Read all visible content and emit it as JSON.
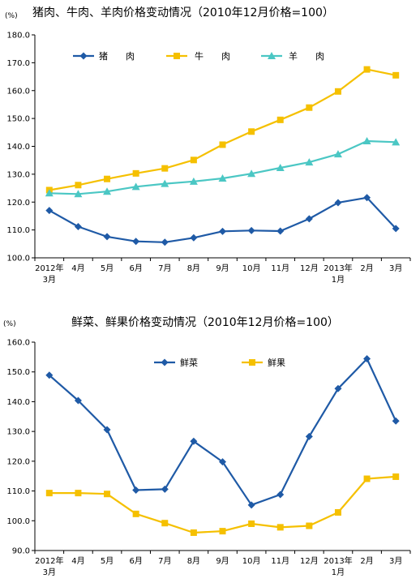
{
  "chart_data": [
    {
      "type": "line",
      "title": "猪肉、牛肉、羊肉价格变动情况（2010年12月价格=100）",
      "unit": "(%)",
      "categories": [
        {
          "top": "2012年",
          "bottom": "3月"
        },
        {
          "top": "4月",
          "bottom": ""
        },
        {
          "top": "5月",
          "bottom": ""
        },
        {
          "top": "6月",
          "bottom": ""
        },
        {
          "top": "7月",
          "bottom": ""
        },
        {
          "top": "8月",
          "bottom": ""
        },
        {
          "top": "9月",
          "bottom": ""
        },
        {
          "top": "10月",
          "bottom": ""
        },
        {
          "top": "11月",
          "bottom": ""
        },
        {
          "top": "12月",
          "bottom": ""
        },
        {
          "top": "2013年",
          "bottom": "1月"
        },
        {
          "top": "2月",
          "bottom": ""
        },
        {
          "top": "3月",
          "bottom": ""
        }
      ],
      "ylim": [
        100,
        180
      ],
      "yticks": [
        "100.0",
        "110.0",
        "120.0",
        "130.0",
        "140.0",
        "150.0",
        "160.0",
        "170.0",
        "180.0"
      ],
      "legend_position": "top-left",
      "grid": false,
      "series": [
        {
          "name": "猪　　肉",
          "color": "#1F5AA6",
          "marker": "diamond",
          "values": [
            117.0,
            111.2,
            107.6,
            105.9,
            105.6,
            107.2,
            109.5,
            109.8,
            109.6,
            114.0,
            119.8,
            121.6,
            110.5
          ]
        },
        {
          "name": "牛　　肉",
          "color": "#F5C000",
          "marker": "square",
          "values": [
            124.3,
            126.1,
            128.3,
            130.3,
            132.1,
            135.1,
            140.6,
            145.3,
            149.5,
            153.9,
            159.7,
            167.6,
            165.5
          ]
        },
        {
          "name": "羊　　肉",
          "color": "#4BC7C4",
          "marker": "triangle",
          "values": [
            123.2,
            122.9,
            123.8,
            125.5,
            126.6,
            127.4,
            128.5,
            130.2,
            132.3,
            134.3,
            137.2,
            141.9,
            141.5
          ]
        }
      ]
    },
    {
      "type": "line",
      "title": "鲜菜、鲜果价格变动情况（2010年12月价格=100）",
      "unit": "(%)",
      "categories": [
        {
          "top": "2012年",
          "bottom": "3月"
        },
        {
          "top": "4月",
          "bottom": ""
        },
        {
          "top": "5月",
          "bottom": ""
        },
        {
          "top": "6月",
          "bottom": ""
        },
        {
          "top": "7月",
          "bottom": ""
        },
        {
          "top": "8月",
          "bottom": ""
        },
        {
          "top": "9月",
          "bottom": ""
        },
        {
          "top": "10月",
          "bottom": ""
        },
        {
          "top": "11月",
          "bottom": ""
        },
        {
          "top": "12月",
          "bottom": ""
        },
        {
          "top": "2013年",
          "bottom": "1月"
        },
        {
          "top": "2月",
          "bottom": ""
        },
        {
          "top": "3月",
          "bottom": ""
        }
      ],
      "ylim": [
        90,
        160
      ],
      "yticks": [
        "90.0",
        "100.0",
        "110.0",
        "120.0",
        "130.0",
        "140.0",
        "150.0",
        "160.0"
      ],
      "legend_position": "top-center",
      "grid": false,
      "series": [
        {
          "name": "鲜菜",
          "color": "#1F5AA6",
          "marker": "diamond",
          "values": [
            148.9,
            140.4,
            130.6,
            110.3,
            110.6,
            126.7,
            119.8,
            105.3,
            108.8,
            128.3,
            144.4,
            154.4,
            133.5
          ]
        },
        {
          "name": "鲜果",
          "color": "#F5C000",
          "marker": "square",
          "values": [
            109.3,
            109.3,
            109.0,
            102.3,
            99.2,
            96.0,
            96.5,
            99.0,
            97.8,
            98.3,
            102.8,
            114.1,
            114.8
          ]
        }
      ]
    }
  ]
}
